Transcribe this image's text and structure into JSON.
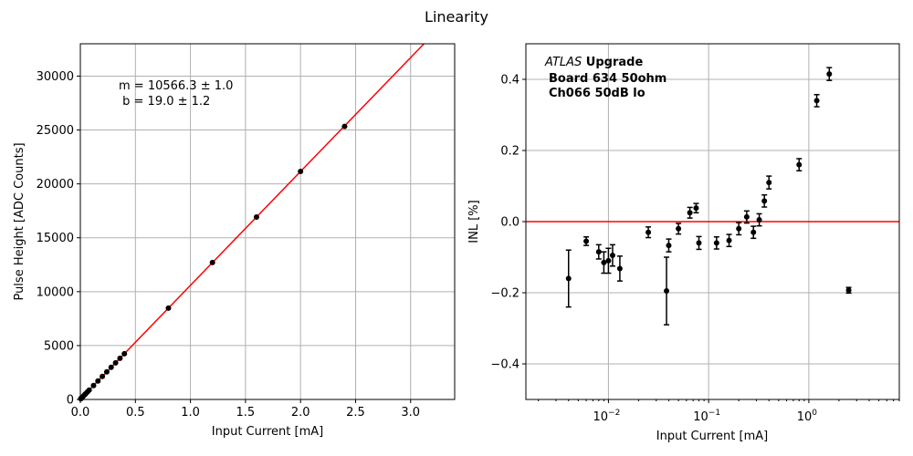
{
  "suptitle": "Linearity",
  "chart_data": [
    {
      "type": "scatter",
      "xlabel": "Input Current [mA]",
      "ylabel": "Pulse Height [ADC Counts]",
      "xlim": [
        0,
        3.4
      ],
      "ylim": [
        0,
        33000
      ],
      "xticks": [
        0.0,
        0.5,
        1.0,
        1.5,
        2.0,
        2.5,
        3.0
      ],
      "xtick_labels": [
        "0.0",
        "0.5",
        "1.0",
        "1.5",
        "2.0",
        "2.5",
        "3.0"
      ],
      "yticks": [
        0,
        5000,
        10000,
        15000,
        20000,
        25000,
        30000
      ],
      "ytick_labels": [
        "0",
        "5000",
        "10000",
        "15000",
        "20000",
        "25000",
        "30000"
      ],
      "grid": true,
      "fit": {
        "slope": 10566.3,
        "intercept": 19.0,
        "color": "#ff0000"
      },
      "annotation_lines": [
        "m = 10566.3 ± 1.0",
        " b = 19.0 ± 1.2"
      ],
      "points": {
        "x": [
          0.004,
          0.006,
          0.008,
          0.009,
          0.01,
          0.011,
          0.013,
          0.025,
          0.04,
          0.05,
          0.065,
          0.08,
          0.12,
          0.16,
          0.2,
          0.24,
          0.28,
          0.32,
          0.36,
          0.4,
          0.8,
          1.2,
          1.6,
          2.0,
          2.4
        ],
        "y": [
          60,
          82,
          104,
          114,
          125,
          135,
          156,
          283,
          442,
          547,
          706,
          864,
          1287,
          1710,
          2132,
          2555,
          2978,
          3400,
          3823,
          4246,
          8472,
          12698,
          16924,
          21150,
          25330
        ]
      },
      "marker_color": "#000000"
    },
    {
      "type": "scatter",
      "xlabel": "Input Current [mA]",
      "ylabel": "INL [%]",
      "xscale": "log",
      "xlim": [
        0.0015,
        8
      ],
      "ylim": [
        -0.5,
        0.5
      ],
      "xticks": [
        0.01,
        0.1,
        1
      ],
      "xtick_labels": [
        "10",
        "10",
        "10"
      ],
      "xtick_exponents": [
        "−2",
        "−1",
        "0"
      ],
      "yticks": [
        -0.4,
        -0.2,
        0.0,
        0.2,
        0.4
      ],
      "ytick_labels": [
        "−0.4",
        "−0.2",
        "0.0",
        "0.2",
        "0.4"
      ],
      "grid": true,
      "reference_line": {
        "y": 0.0,
        "color": "#ff0000"
      },
      "watermark": {
        "italic": "ATLAS",
        "bold": " Upgrade",
        "lines": [
          "Board 634 50ohm",
          "Ch066 50dB lo"
        ]
      },
      "points": {
        "x": [
          0.004,
          0.006,
          0.008,
          0.009,
          0.01,
          0.011,
          0.013,
          0.025,
          0.038,
          0.04,
          0.05,
          0.065,
          0.075,
          0.08,
          0.12,
          0.16,
          0.2,
          0.24,
          0.28,
          0.32,
          0.36,
          0.4,
          0.8,
          1.2,
          1.6,
          2.5
        ],
        "y": [
          -0.16,
          -0.055,
          -0.085,
          -0.115,
          -0.11,
          -0.095,
          -0.132,
          -0.03,
          -0.195,
          -0.067,
          -0.02,
          0.025,
          0.038,
          -0.06,
          -0.06,
          -0.053,
          -0.02,
          0.013,
          -0.03,
          0.005,
          0.058,
          0.11,
          0.16,
          0.34,
          0.415,
          -0.193
        ],
        "yerr": [
          0.08,
          0.012,
          0.02,
          0.03,
          0.035,
          0.03,
          0.035,
          0.015,
          0.095,
          0.018,
          0.015,
          0.015,
          0.013,
          0.018,
          0.017,
          0.017,
          0.017,
          0.017,
          0.017,
          0.017,
          0.017,
          0.018,
          0.017,
          0.017,
          0.018,
          0.008
        ]
      },
      "marker_color": "#000000"
    }
  ]
}
